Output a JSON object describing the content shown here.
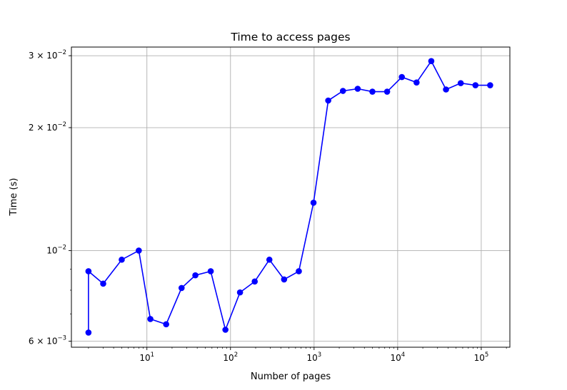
{
  "chart_data": {
    "type": "line",
    "title": "Time to access pages",
    "xlabel": "Number of pages",
    "ylabel": "Time (s)",
    "xscale": "log",
    "yscale": "log",
    "xlim": [
      1.25,
      220000
    ],
    "ylim": [
      0.0058,
      0.0315
    ],
    "grid": true,
    "color": "#0000ff",
    "marker": "circle",
    "x_ticks": [
      {
        "value": 10,
        "base": "10",
        "exp": "1"
      },
      {
        "value": 100,
        "base": "10",
        "exp": "2"
      },
      {
        "value": 1000,
        "base": "10",
        "exp": "3"
      },
      {
        "value": 10000,
        "base": "10",
        "exp": "4"
      },
      {
        "value": 100000,
        "base": "10",
        "exp": "5"
      }
    ],
    "y_ticks": [
      {
        "value": 0.006,
        "mant": "6",
        "base": "×10",
        "exp": "−3"
      },
      {
        "value": 0.01,
        "mant": "",
        "base": "10",
        "exp": "−2"
      },
      {
        "value": 0.02,
        "mant": "2",
        "base": "×10",
        "exp": "−2"
      },
      {
        "value": 0.03,
        "mant": "3",
        "base": "×10",
        "exp": "−2"
      }
    ],
    "series": [
      {
        "x": [
          2,
          2,
          3,
          5,
          8,
          11,
          17,
          26,
          38,
          58,
          87,
          130,
          195,
          292,
          438,
          657,
          985,
          1477,
          2216,
          3325,
          4987,
          7481,
          11222,
          16834,
          25251,
          37877,
          56815,
          85223,
          127834
        ],
        "y": [
          0.0063,
          0.0089,
          0.0083,
          0.0095,
          0.01,
          0.0068,
          0.0066,
          0.0081,
          0.0087,
          0.0089,
          0.0064,
          0.0079,
          0.0084,
          0.0095,
          0.0085,
          0.0089,
          0.0131,
          0.0233,
          0.0246,
          0.0249,
          0.0245,
          0.0245,
          0.0266,
          0.0258,
          0.0291,
          0.0248,
          0.0257,
          0.0254,
          0.0254
        ]
      }
    ]
  }
}
